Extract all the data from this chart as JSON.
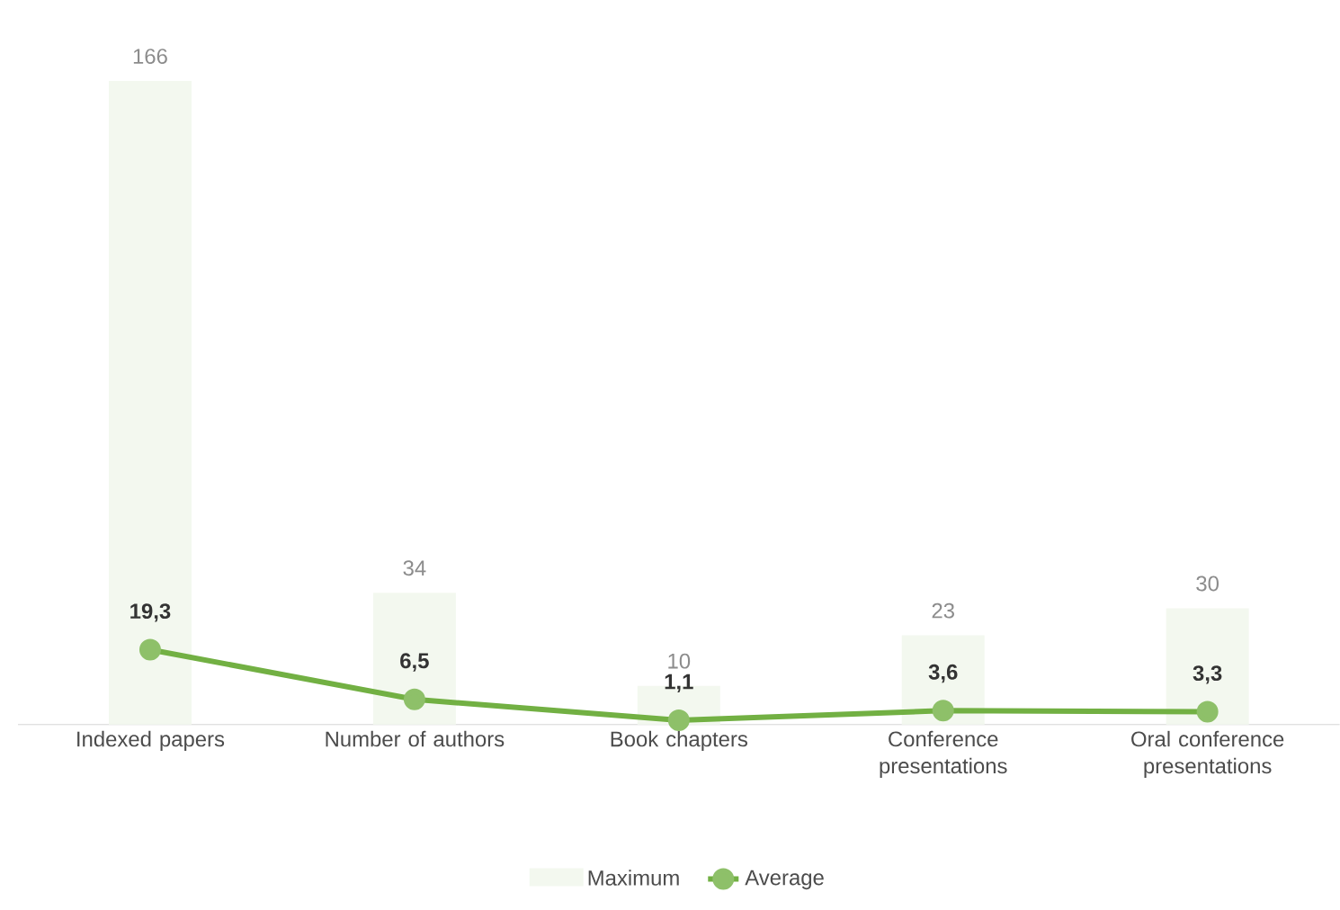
{
  "chart_data": {
    "type": "bar",
    "categories": [
      "Indexed papers",
      "Number of authors",
      "Book chapters",
      "Conference presentations",
      "Oral conference presentations"
    ],
    "series": [
      {
        "name": "Maximum",
        "color": "#f3f8ef",
        "values": [
          166,
          34,
          10,
          23,
          30
        ],
        "value_labels": [
          "166",
          "34",
          "10",
          "23",
          "30"
        ]
      },
      {
        "name": "Average",
        "type": "line",
        "color": "#72b043",
        "marker": "circle",
        "values": [
          19.3,
          6.5,
          1.1,
          3.6,
          3.3
        ],
        "value_labels": [
          "19,3",
          "6,5",
          "1,1",
          "3,6",
          "3,3"
        ]
      }
    ],
    "legend": "bottom"
  }
}
